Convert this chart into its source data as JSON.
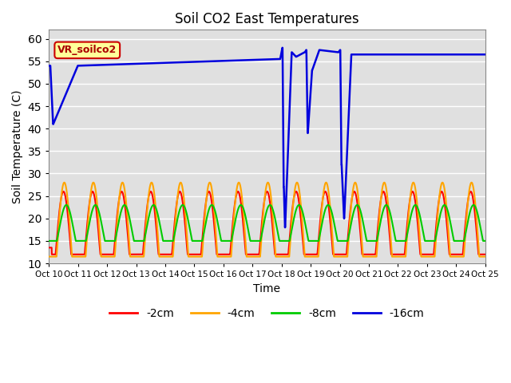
{
  "title": "Soil CO2 East Temperatures",
  "xlabel": "Time",
  "ylabel": "Soil Temperature (C)",
  "ylim": [
    10,
    62
  ],
  "yticks": [
    10,
    15,
    20,
    25,
    30,
    35,
    40,
    45,
    50,
    55,
    60
  ],
  "legend_label": "VR_soilco2",
  "legend_bg": "#FFFF99",
  "legend_edge": "#CC0000",
  "bg_color": "#E0E0E0",
  "line_colors": {
    "-2cm": "#FF0000",
    "-4cm": "#FFA500",
    "-8cm": "#00CC00",
    "-16cm": "#0000DD"
  },
  "line_widths": {
    "-2cm": 1.5,
    "-4cm": 1.5,
    "-8cm": 1.5,
    "-16cm": 1.8
  },
  "xtick_labels": [
    "Oct 10",
    "Oct 11",
    "Oct 12",
    "Oct 13",
    "Oct 14",
    "Oct 15",
    "Oct 16",
    "Oct 17",
    "Oct 18",
    "Oct 19",
    "Oct 20",
    "Oct 21",
    "Oct 22",
    "Oct 23",
    "Oct 24",
    "Oct 25"
  ]
}
